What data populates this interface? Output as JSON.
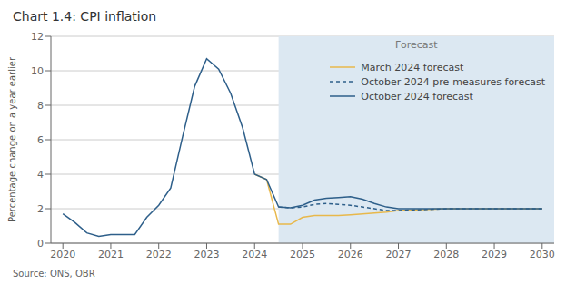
{
  "chart_data": {
    "type": "line",
    "title": "Chart 1.4: CPI inflation",
    "y_label": "Percentage change on a year earlier",
    "source": "Source: ONS, OBR",
    "xlim": [
      2019.75,
      2030.25
    ],
    "xticks": [
      2020,
      2021,
      2022,
      2023,
      2024,
      2025,
      2026,
      2027,
      2028,
      2029,
      2030
    ],
    "ylim": [
      0,
      12
    ],
    "yticks": [
      0,
      2,
      4,
      6,
      8,
      10,
      12
    ],
    "grid": true,
    "legend": "upper right",
    "shaded_region": {
      "x": [
        2024.5,
        2030.25
      ],
      "label": "Forecast",
      "color": "#dce8f2"
    },
    "series": [
      {
        "name": "March 2024 forecast",
        "color": "#e8b84b",
        "line_style": "solid",
        "x": [
          2024.0,
          2024.25,
          2024.5,
          2024.75,
          2025.0,
          2025.25,
          2025.5,
          2025.75,
          2026.0,
          2026.25,
          2026.5,
          2026.75,
          2027.0,
          2027.5,
          2028.0,
          2028.5,
          2029.0,
          2029.5,
          2030.0
        ],
        "values": [
          4.0,
          3.7,
          1.1,
          1.1,
          1.5,
          1.6,
          1.6,
          1.6,
          1.65,
          1.7,
          1.75,
          1.8,
          1.9,
          1.95,
          2.0,
          2.0,
          2.0,
          2.0,
          2.0
        ]
      },
      {
        "name": "October 2024 pre-measures forecast",
        "color": "#2e5f8a",
        "line_style": "dashed",
        "x": [
          2024.5,
          2024.75,
          2025.0,
          2025.25,
          2025.5,
          2025.75,
          2026.0,
          2026.25,
          2026.5,
          2026.75,
          2027.0,
          2027.5,
          2028.0,
          2028.5,
          2029.0,
          2029.5,
          2030.0
        ],
        "values": [
          2.1,
          2.05,
          2.1,
          2.25,
          2.3,
          2.25,
          2.2,
          2.1,
          2.0,
          1.9,
          1.9,
          1.95,
          2.0,
          2.0,
          2.0,
          2.0,
          2.0
        ]
      },
      {
        "name": "October 2024 forecast",
        "color": "#2e5f8a",
        "line_style": "solid",
        "x": [
          2020.0,
          2020.25,
          2020.5,
          2020.75,
          2021.0,
          2021.25,
          2021.5,
          2021.75,
          2022.0,
          2022.25,
          2022.5,
          2022.75,
          2023.0,
          2023.25,
          2023.5,
          2023.75,
          2024.0,
          2024.25,
          2024.5,
          2024.75,
          2025.0,
          2025.25,
          2025.5,
          2025.75,
          2026.0,
          2026.25,
          2026.5,
          2026.75,
          2027.0,
          2027.5,
          2028.0,
          2028.5,
          2029.0,
          2029.5,
          2030.0
        ],
        "values": [
          1.7,
          1.2,
          0.6,
          0.4,
          0.5,
          0.5,
          0.5,
          1.5,
          2.2,
          3.2,
          6.2,
          9.1,
          10.7,
          10.1,
          8.7,
          6.7,
          4.0,
          3.7,
          2.1,
          2.05,
          2.2,
          2.5,
          2.6,
          2.65,
          2.7,
          2.55,
          2.3,
          2.1,
          2.0,
          2.0,
          2.0,
          2.0,
          2.0,
          2.0,
          2.0
        ]
      }
    ]
  }
}
